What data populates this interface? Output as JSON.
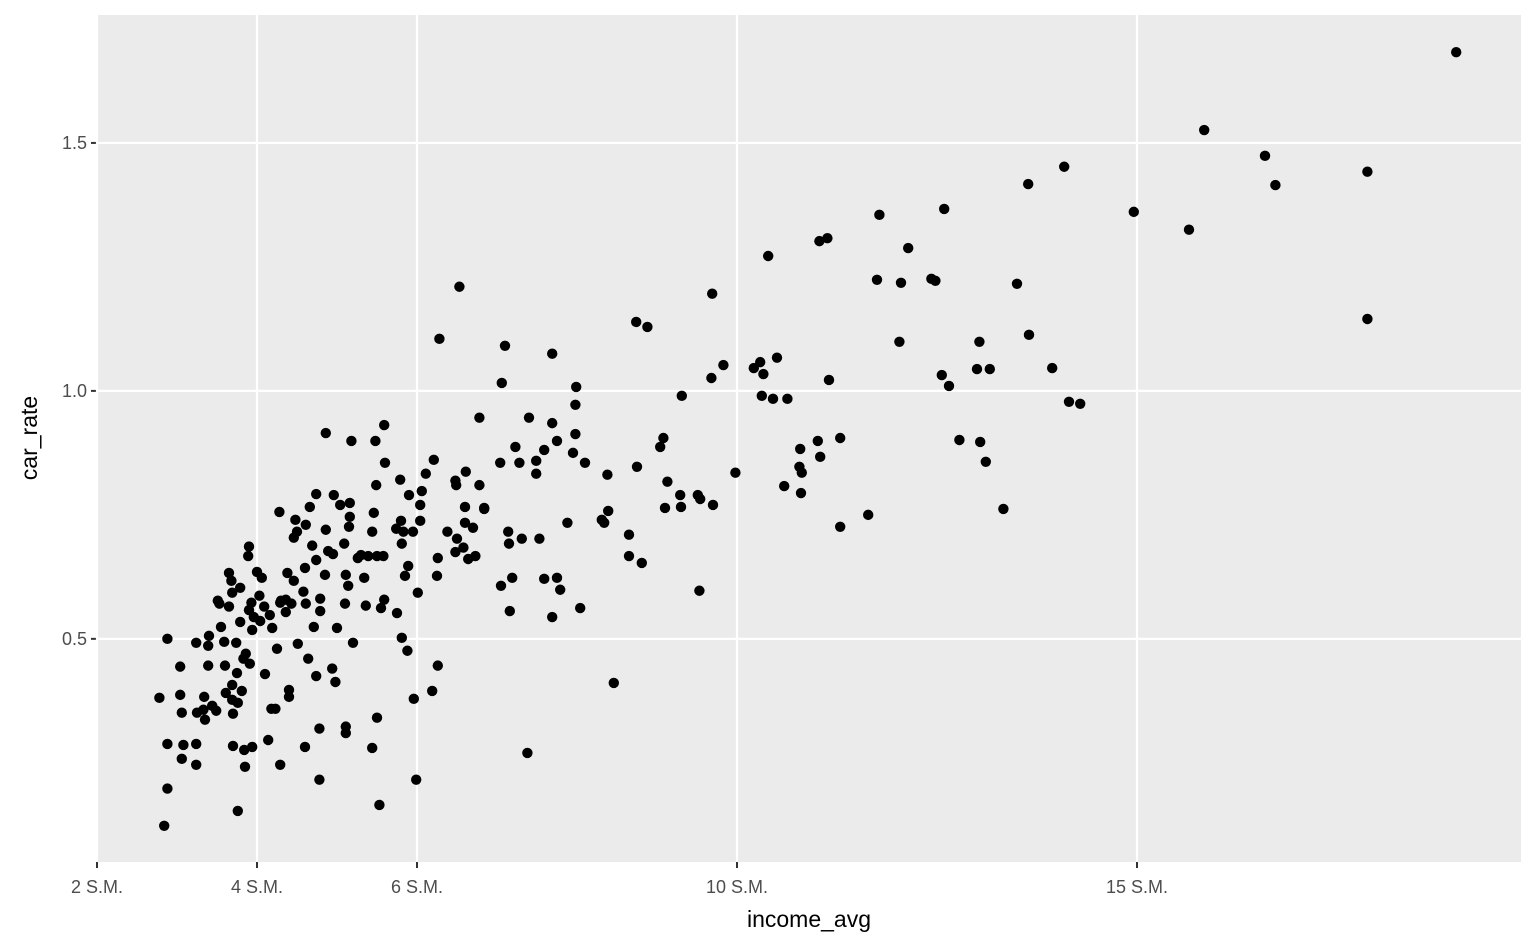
{
  "chart_data": {
    "type": "scatter",
    "x_label": "income_avg",
    "y_label": "car_rate",
    "color": "#000000",
    "grid": true,
    "xlim": [
      2,
      19.8
    ],
    "ylim": [
      0.05,
      1.758
    ],
    "xticks": [
      {
        "value": 2,
        "label": "2 S.M."
      },
      {
        "value": 4,
        "label": "4 S.M."
      },
      {
        "value": 6,
        "label": "6 S.M."
      },
      {
        "value": 10,
        "label": "10 S.M."
      },
      {
        "value": 15,
        "label": "15 S.M."
      }
    ],
    "yticks": [
      0.5,
      {
        "value": 1,
        "label": "1.0"
      },
      1.5
    ],
    "x": [
      18.99,
      15.84,
      16.6,
      16.73,
      17.88,
      17.88,
      14.96,
      15.65,
      14.09,
      13.64,
      13.5,
      13.65,
      13.94,
      14.15,
      14.29,
      12.59,
      12.14,
      11.78,
      11.75,
      12.05,
      12.03,
      12.43,
      12.48,
      12.56,
      12.65,
      12.78,
      13.03,
      13.0,
      13.16,
      13.04,
      13.11,
      13.33,
      11.64,
      11.29,
      11.29,
      11.03,
      11.13,
      11.15,
      11.01,
      11.04,
      10.79,
      10.78,
      10.81,
      10.8,
      10.59,
      10.39,
      10.5,
      10.29,
      10.33,
      10.21,
      10.31,
      10.45,
      10.63,
      9.98,
      9.83,
      9.69,
      9.68,
      9.7,
      9.51,
      9.54,
      9.53,
      9.3,
      9.31,
      9.29,
      9.08,
      9.04,
      9.1,
      9.13,
      8.74,
      8.88,
      8.75,
      8.65,
      8.65,
      8.81,
      8.46,
      8.39,
      8.31,
      8.34,
      8.04,
      8.38,
      8.1,
      7.99,
      7.98,
      7.98,
      7.95,
      7.75,
      7.69,
      7.69,
      7.59,
      7.88,
      7.75,
      7.79,
      7.69,
      7.59,
      7.38,
      7.53,
      7.49,
      7.49,
      7.4,
      7.28,
      7.23,
      7.31,
      7.19,
      7.16,
      7.14,
      7.15,
      7.1,
      7.06,
      7.04,
      7.05,
      6.78,
      6.84,
      6.78,
      6.84,
      6.53,
      6.28,
      6.7,
      6.73,
      6.64,
      6.61,
      6.6,
      6.6,
      6.58,
      6.5,
      6.48,
      6.49,
      6.48,
      6.38,
      6.26,
      6.25,
      6.26,
      6.19,
      6.21,
      6.11,
      6.06,
      6.04,
      6.04,
      6.01,
      5.99,
      5.96,
      5.95,
      5.9,
      5.89,
      5.85,
      5.88,
      5.81,
      5.81,
      5.8,
      5.83,
      5.79,
      5.74,
      5.75,
      5.59,
      5.6,
      5.58,
      5.59,
      5.55,
      5.5,
      5.53,
      5.44,
      5.48,
      5.49,
      5.46,
      5.5,
      5.44,
      5.39,
      5.3,
      5.26,
      5.34,
      5.36,
      5.18,
      5.16,
      5.16,
      5.15,
      5.2,
      5.14,
      5.11,
      5.1,
      5.09,
      5.04,
      4.96,
      4.95,
      5.11,
      5.11,
      5.0,
      4.98,
      4.94,
      4.86,
      4.86,
      4.89,
      4.85,
      4.79,
      4.79,
      4.74,
      4.74,
      4.69,
      4.71,
      4.74,
      4.78,
      4.78,
      4.66,
      4.64,
      4.6,
      4.61,
      4.61,
      4.6,
      4.58,
      4.51,
      4.5,
      4.48,
      4.46,
      4.46,
      4.43,
      4.4,
      4.4,
      4.38,
      4.36,
      4.36,
      4.3,
      4.29,
      4.28,
      4.23,
      4.18,
      4.29,
      4.14,
      4.25,
      4.16,
      4.19,
      4.09,
      4.1,
      4.06,
      4.04,
      4.03,
      4.0,
      3.96,
      3.94,
      3.94,
      3.93,
      3.91,
      3.9,
      3.89,
      3.9,
      3.85,
      3.84,
      3.86,
      3.83,
      3.81,
      3.79,
      3.79,
      3.76,
      3.76,
      3.75,
      3.74,
      3.7,
      3.7,
      3.69,
      3.69,
      3.69,
      3.68,
      3.65,
      3.65,
      3.61,
      3.59,
      3.6,
      3.53,
      3.51,
      3.55,
      3.49,
      3.44,
      3.4,
      3.39,
      3.39,
      3.35,
      3.34,
      3.33,
      3.24,
      3.25,
      3.24,
      3.24,
      3.06,
      3.08,
      3.06,
      3.04,
      3.04,
      2.88,
      2.88,
      2.88,
      2.84,
      2.78
    ],
    "values": [
      1.683,
      1.526,
      1.474,
      1.415,
      1.442,
      1.145,
      1.361,
      1.325,
      1.452,
      1.417,
      1.216,
      1.113,
      1.046,
      0.978,
      0.974,
      1.367,
      1.288,
      1.355,
      1.224,
      1.218,
      1.099,
      1.226,
      1.222,
      1.032,
      1.01,
      0.901,
      1.099,
      1.044,
      1.044,
      0.897,
      0.857,
      0.762,
      0.75,
      0.726,
      0.905,
      1.302,
      1.308,
      1.022,
      0.899,
      0.867,
      0.883,
      0.847,
      0.835,
      0.794,
      0.808,
      1.272,
      1.067,
      1.058,
      1.034,
      1.046,
      0.99,
      0.984,
      0.984,
      0.835,
      1.052,
      1.196,
      1.026,
      0.77,
      0.79,
      0.782,
      0.597,
      0.766,
      0.99,
      0.79,
      0.905,
      0.887,
      0.764,
      0.817,
      1.139,
      1.129,
      0.847,
      0.71,
      0.667,
      0.653,
      0.411,
      0.758,
      0.74,
      0.734,
      0.562,
      0.831,
      0.855,
      1.008,
      0.972,
      0.913,
      0.875,
      0.899,
      1.075,
      0.935,
      0.881,
      0.734,
      0.623,
      0.599,
      0.544,
      0.621,
      0.27,
      0.702,
      0.833,
      0.859,
      0.946,
      0.855,
      0.887,
      0.702,
      0.623,
      0.556,
      0.716,
      0.692,
      1.091,
      1.016,
      0.855,
      0.607,
      0.946,
      0.762,
      0.81,
      0.764,
      1.21,
      1.105,
      0.724,
      0.667,
      0.661,
      0.837,
      0.766,
      0.734,
      0.684,
      0.702,
      0.819,
      0.81,
      0.675,
      0.716,
      0.663,
      0.627,
      0.446,
      0.395,
      0.861,
      0.833,
      0.798,
      0.738,
      0.77,
      0.593,
      0.216,
      0.379,
      0.716,
      0.79,
      0.647,
      0.627,
      0.476,
      0.502,
      0.692,
      0.738,
      0.716,
      0.821,
      0.722,
      0.552,
      0.931,
      0.855,
      0.667,
      0.579,
      0.562,
      0.341,
      0.165,
      0.28,
      0.899,
      0.81,
      0.754,
      0.667,
      0.716,
      0.667,
      0.669,
      0.663,
      0.623,
      0.567,
      0.899,
      0.774,
      0.746,
      0.726,
      0.492,
      0.607,
      0.629,
      0.571,
      0.692,
      0.77,
      0.79,
      0.671,
      0.323,
      0.31,
      0.522,
      0.413,
      0.44,
      0.915,
      0.72,
      0.677,
      0.629,
      0.581,
      0.556,
      0.792,
      0.659,
      0.688,
      0.524,
      0.425,
      0.319,
      0.216,
      0.766,
      0.46,
      0.282,
      0.73,
      0.571,
      0.643,
      0.595,
      0.49,
      0.716,
      0.74,
      0.704,
      0.617,
      0.571,
      0.397,
      0.383,
      0.633,
      0.579,
      0.554,
      0.577,
      0.573,
      0.756,
      0.359,
      0.359,
      0.246,
      0.296,
      0.48,
      0.548,
      0.522,
      0.565,
      0.429,
      0.623,
      0.536,
      0.587,
      0.635,
      0.544,
      0.282,
      0.518,
      0.573,
      0.45,
      0.686,
      0.667,
      0.558,
      0.242,
      0.276,
      0.47,
      0.46,
      0.395,
      0.603,
      0.534,
      0.153,
      0.371,
      0.431,
      0.492,
      0.284,
      0.349,
      0.377,
      0.407,
      0.593,
      0.617,
      0.633,
      0.565,
      0.391,
      0.494,
      0.446,
      0.571,
      0.577,
      0.524,
      0.355,
      0.365,
      0.506,
      0.446,
      0.486,
      0.337,
      0.383,
      0.357,
      0.492,
      0.351,
      0.246,
      0.288,
      0.351,
      0.286,
      0.258,
      0.444,
      0.387,
      0.5,
      0.288,
      0.198,
      0.123,
      0.381
    ]
  }
}
